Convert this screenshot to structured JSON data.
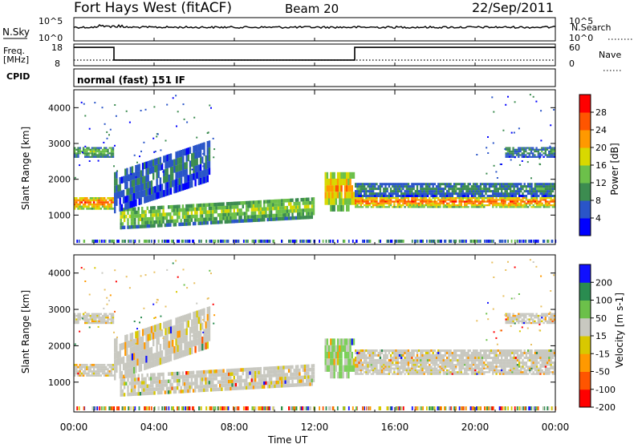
{
  "header": {
    "station": "Fort Hays West (fitACF)",
    "beam": "Beam 20",
    "date": "22/Sep/2011"
  },
  "noise_panel": {
    "left_label": "N.Sky",
    "right_label": "N.Search",
    "left_ticks": [
      "10^5",
      "10^0"
    ],
    "right_ticks": [
      "10^5",
      "10^0"
    ]
  },
  "freq_panel": {
    "left_label_1": "Freq.",
    "left_label_2": "[MHz]",
    "right_label": "Nave",
    "left_ticks": [
      "18",
      "8"
    ],
    "right_ticks": [
      "60",
      "0"
    ]
  },
  "cpid_panel": {
    "label": "CPID",
    "text": "normal (fast) 151 IF"
  },
  "power_panel": {
    "ylabel": "Slant Range [km]",
    "colorbar_label": "Power [dB]",
    "colorbar_colors": [
      "#0000ff",
      "#2a55c8",
      "#3c8c50",
      "#6cc04a",
      "#d8d800",
      "#ff9900",
      "#ff5500",
      "#ff0000"
    ],
    "colorbar_ticks": [
      "28",
      "24",
      "20",
      "16",
      "12",
      "8",
      "4"
    ]
  },
  "velocity_panel": {
    "ylabel": "Slant Range [km]",
    "colorbar_label": "Velocity [m s-1]",
    "colorbar_colors": [
      "#ff0000",
      "#ff5500",
      "#ff9900",
      "#d8c800",
      "#c8c8c0",
      "#6cc04a",
      "#2a8c50",
      "#1010ff"
    ],
    "colorbar_ticks": [
      "200",
      "100",
      "50",
      "15",
      "-15",
      "-50",
      "-100",
      "-200"
    ]
  },
  "xaxis": {
    "label": "Time UT",
    "ticks": [
      "00:00",
      "04:00",
      "08:00",
      "12:00",
      "16:00",
      "20:00",
      "00:00"
    ]
  },
  "chart_data": {
    "type": "heatmap",
    "title": "Fort Hays West (fitACF) Beam 20 22/Sep/2011",
    "xlabel": "Time UT",
    "ylabel": "Slant Range [km]",
    "x_range_hours": [
      0,
      24
    ],
    "y_range_km": [
      180,
      4500
    ],
    "frequency_steps": [
      {
        "start_h": 0.0,
        "end_h": 2.0,
        "freq_mhz": 17.5
      },
      {
        "start_h": 2.0,
        "end_h": 14.0,
        "freq_mhz": 10.3
      },
      {
        "start_h": 14.0,
        "end_h": 24.0,
        "freq_mhz": 17.5
      }
    ],
    "power_scale_db": [
      0,
      32
    ],
    "velocity_scale_ms": [
      -250,
      250
    ],
    "echo_bands": [
      {
        "start_h": 0.0,
        "end_h": 2.0,
        "range_km": [
          1150,
          1500
        ],
        "power_db": 26
      },
      {
        "start_h": 0.0,
        "end_h": 2.0,
        "range_km": [
          2600,
          2900
        ],
        "power_db": 14
      },
      {
        "start_h": 2.3,
        "end_h": 12.0,
        "range_km": [
          600,
          1200
        ],
        "power_db": 16
      },
      {
        "start_h": 2.0,
        "end_h": 6.8,
        "range_km": [
          1050,
          2200
        ],
        "power_db": 8
      },
      {
        "start_h": 12.5,
        "end_h": 14.0,
        "range_km": [
          1100,
          2200
        ],
        "power_db": 22
      },
      {
        "start_h": 14.0,
        "end_h": 24.0,
        "range_km": [
          1200,
          1500
        ],
        "power_db": 26
      },
      {
        "start_h": 14.0,
        "end_h": 24.0,
        "range_km": [
          1500,
          1900
        ],
        "power_db": 10
      },
      {
        "start_h": 21.5,
        "end_h": 24.0,
        "range_km": [
          2600,
          2900
        ],
        "power_db": 10
      }
    ]
  }
}
